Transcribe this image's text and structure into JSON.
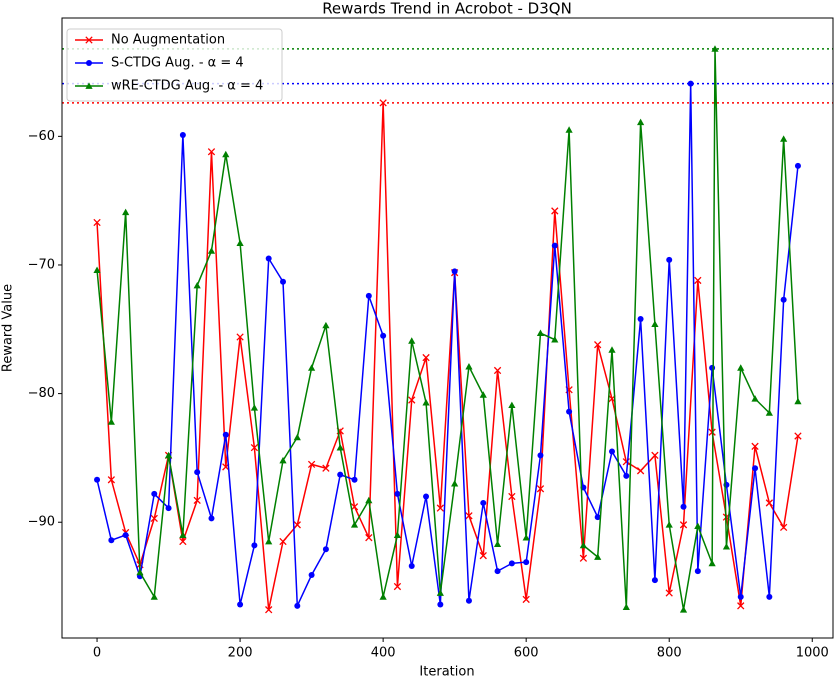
{
  "chart_data": {
    "type": "line",
    "title": "Rewards Trend in Acrobot - D3QN",
    "xlabel": "Iteration",
    "ylabel": "Reward Value",
    "xlim": [
      -49,
      1029
    ],
    "ylim": [
      -99.0,
      -50.8
    ],
    "xticks": [
      0,
      200,
      400,
      600,
      800,
      1000
    ],
    "yticks": [
      {
        "value": -60,
        "label": "−60"
      },
      {
        "value": -70,
        "label": "−70"
      },
      {
        "value": -80,
        "label": "−80"
      },
      {
        "value": -90,
        "label": "−90"
      }
    ],
    "legend": "upper left",
    "series": [
      {
        "name": "No Augmentation",
        "color": "#ff0000",
        "marker": "x",
        "x": [
          0,
          20,
          40,
          60,
          80,
          100,
          120,
          140,
          160,
          180,
          200,
          220,
          240,
          260,
          280,
          300,
          320,
          340,
          360,
          380,
          400,
          420,
          440,
          460,
          480,
          500,
          520,
          540,
          560,
          580,
          600,
          620,
          640,
          660,
          680,
          700,
          720,
          740,
          760,
          780,
          800,
          820,
          840,
          860,
          880,
          900,
          920,
          940,
          960,
          980
        ],
        "values": [
          -66.7,
          -86.7,
          -90.8,
          -93.3,
          -89.7,
          -84.8,
          -91.5,
          -88.3,
          -61.2,
          -85.7,
          -75.6,
          -84.2,
          -96.8,
          -91.5,
          -90.2,
          -85.5,
          -85.8,
          -82.9,
          -88.8,
          -91.2,
          -57.4,
          -95.0,
          -80.5,
          -77.2,
          -88.9,
          -70.6,
          -89.5,
          -92.6,
          -78.2,
          -88.0,
          -96.0,
          -87.4,
          -65.8,
          -79.7,
          -92.8,
          -76.2,
          -80.4,
          -85.3,
          -86.0,
          -84.8,
          -95.5,
          -90.2,
          -71.2,
          -83.0,
          -89.6,
          -96.5,
          -84.1,
          -88.5,
          -90.4,
          -83.3
        ]
      },
      {
        "name": "S-CTDG Aug. - α = 4",
        "color": "#0000ff",
        "marker": "o",
        "x": [
          0,
          20,
          40,
          60,
          80,
          100,
          120,
          140,
          160,
          180,
          200,
          220,
          240,
          260,
          280,
          300,
          320,
          340,
          360,
          380,
          400,
          420,
          440,
          460,
          480,
          500,
          520,
          540,
          560,
          580,
          600,
          620,
          640,
          660,
          680,
          700,
          720,
          740,
          760,
          780,
          800,
          820,
          830,
          840,
          860,
          880,
          900,
          920,
          940,
          960,
          980
        ],
        "values": [
          -86.7,
          -91.4,
          -91.0,
          -94.2,
          -87.8,
          -88.9,
          -59.9,
          -86.1,
          -89.7,
          -83.2,
          -96.4,
          -91.8,
          -69.5,
          -71.3,
          -96.5,
          -94.1,
          -92.1,
          -86.3,
          -86.7,
          -72.4,
          -75.5,
          -87.8,
          -93.4,
          -88.0,
          -96.4,
          -70.5,
          -96.1,
          -88.5,
          -93.8,
          -93.2,
          -93.1,
          -84.8,
          -68.5,
          -81.4,
          -87.3,
          -89.6,
          -84.5,
          -86.4,
          -74.2,
          -94.5,
          -69.6,
          -88.8,
          -55.9,
          -93.8,
          -78.0,
          -87.1,
          -95.8,
          -85.8,
          -95.8,
          -72.7,
          -62.3
        ]
      },
      {
        "name": "wRE-CTDG Aug. - α = 4",
        "color": "#008000",
        "marker": "^",
        "x": [
          0,
          20,
          40,
          60,
          80,
          100,
          120,
          140,
          160,
          180,
          200,
          220,
          240,
          260,
          280,
          300,
          320,
          340,
          360,
          380,
          400,
          420,
          440,
          460,
          480,
          500,
          520,
          540,
          560,
          580,
          600,
          620,
          640,
          660,
          680,
          700,
          720,
          740,
          760,
          780,
          800,
          820,
          840,
          860,
          864,
          880,
          900,
          920,
          940,
          960,
          980
        ],
        "values": [
          -70.4,
          -82.2,
          -65.9,
          -93.9,
          -95.8,
          -84.8,
          -91.0,
          -71.6,
          -68.9,
          -61.4,
          -68.3,
          -81.1,
          -91.5,
          -85.2,
          -83.4,
          -78.0,
          -74.7,
          -84.2,
          -90.2,
          -88.3,
          -95.8,
          -91.0,
          -75.9,
          -80.7,
          -95.5,
          -87.0,
          -77.9,
          -80.1,
          -91.7,
          -80.9,
          -91.2,
          -75.3,
          -75.8,
          -59.5,
          -91.8,
          -92.7,
          -76.6,
          -96.6,
          -58.9,
          -74.6,
          -90.2,
          -96.8,
          -90.3,
          -93.2,
          -53.2,
          -91.9,
          -78.0,
          -80.4,
          -81.5,
          -60.2,
          -80.6
        ]
      }
    ],
    "hlines": [
      {
        "value": -57.4,
        "color": "#ff0000"
      },
      {
        "value": -55.9,
        "color": "#0000ff"
      },
      {
        "value": -53.2,
        "color": "#008000"
      }
    ]
  }
}
